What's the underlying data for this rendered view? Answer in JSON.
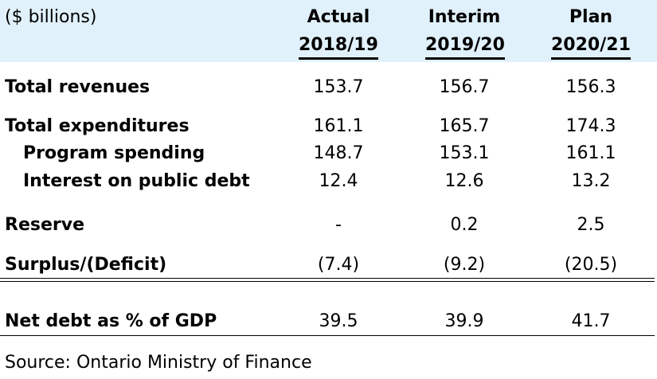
{
  "header": {
    "units": "($ billions)",
    "columns": [
      {
        "label": "Actual",
        "year": "2018/19"
      },
      {
        "label": "Interim",
        "year": "2019/20"
      },
      {
        "label": "Plan",
        "year": "2020/21"
      }
    ]
  },
  "rows": [
    {
      "label": "Total revenues",
      "values": [
        "153.7",
        "156.7",
        "156.3"
      ]
    },
    {
      "label": "Total expenditures",
      "values": [
        "161.1",
        "165.7",
        "174.3"
      ]
    },
    {
      "label": "Program spending",
      "values": [
        "148.7",
        "153.1",
        "161.1"
      ]
    },
    {
      "label": "Interest on public debt",
      "values": [
        "12.4",
        "12.6",
        "13.2"
      ]
    },
    {
      "label": "Reserve",
      "values": [
        "-",
        "0.2",
        "2.5"
      ]
    },
    {
      "label": "Surplus/(Deficit)",
      "values": [
        "(7.4)",
        "(9.2)",
        "(20.5)"
      ]
    },
    {
      "label": "Net debt as % of GDP",
      "values": [
        "39.5",
        "39.9",
        "41.7"
      ]
    }
  ],
  "source": "Source: Ontario Ministry of Finance",
  "colors": {
    "header_background": "#e0f1fb"
  }
}
